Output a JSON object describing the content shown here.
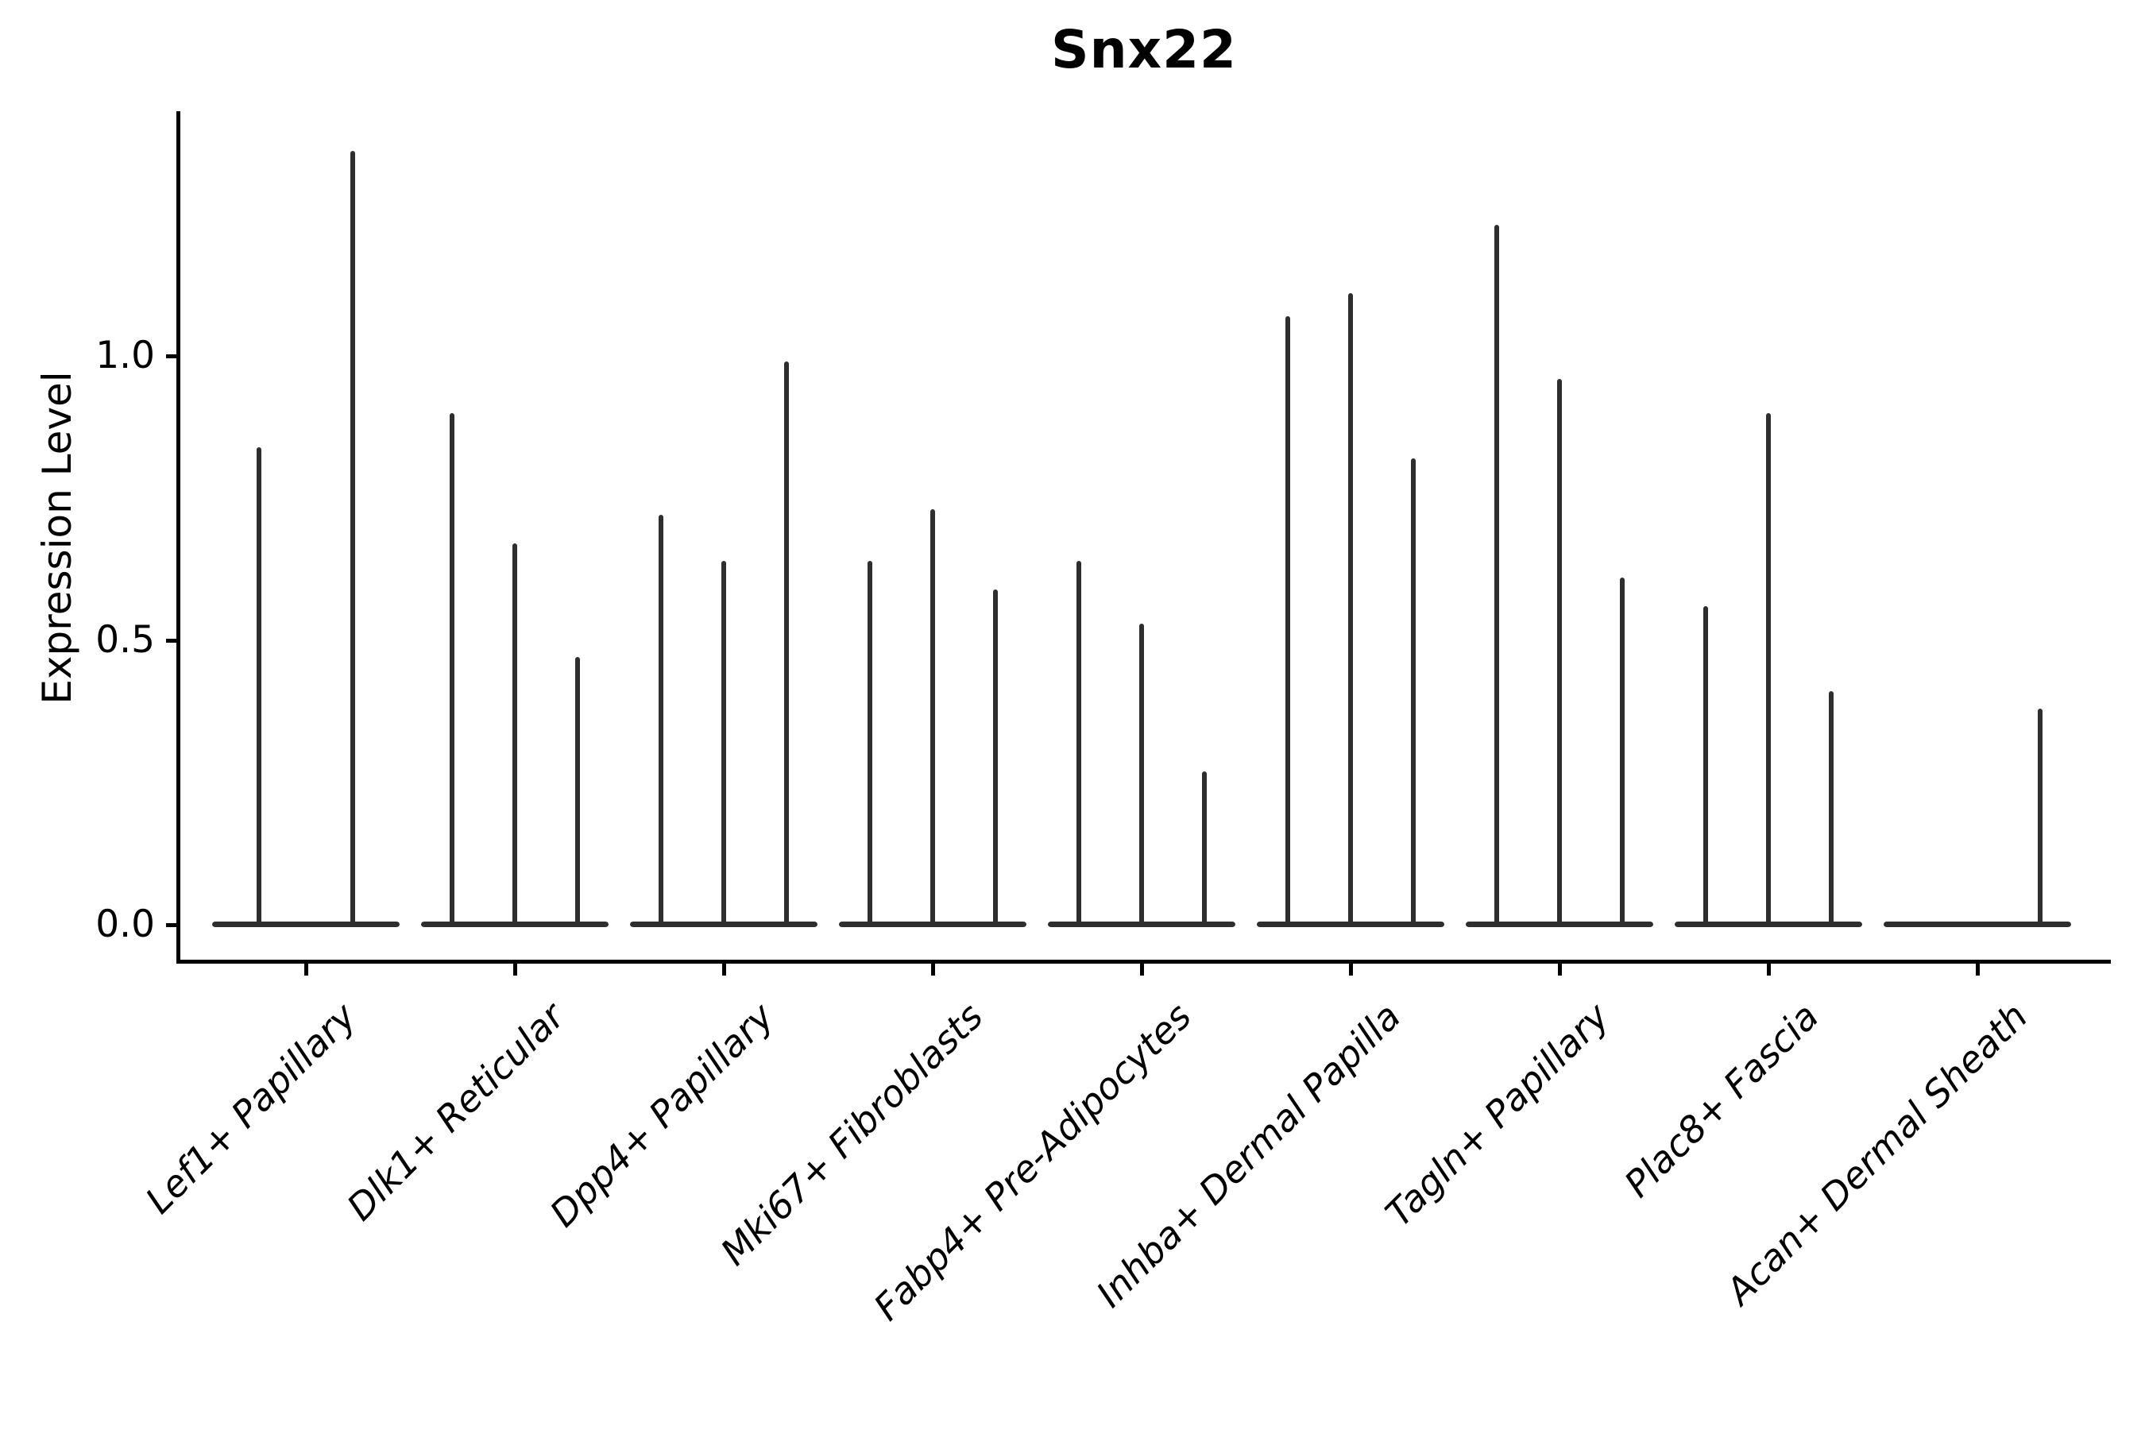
{
  "chart_data": {
    "type": "violin",
    "title": "Snx22",
    "xlabel": "",
    "ylabel": "Expression Level",
    "ylim": [
      0,
      1.43
    ],
    "yticks": [
      0.0,
      0.5,
      1.0
    ],
    "ytick_labels": [
      "0.0",
      "0.5",
      "1.0"
    ],
    "grid": false,
    "legend": "none",
    "violin_color": "#2e2e2e",
    "axis_color": "#000000",
    "background_color": "#ffffff",
    "note": "Each category holds multiple very thin violins flattened at 0 with narrow spikes to the listed peak expression value; zero entries are flat violins with no spike.",
    "categories": [
      "Lef1+ Papillary",
      "Dlk1+ Reticular",
      "Dpp4+ Papillary",
      "Mki67+ Fibroblasts",
      "Fabp4+ Pre-Adipocytes",
      "Inhba+ Dermal Papilla",
      "Tagln+ Papillary",
      "Plac8+ Fascia",
      "Acan+ Dermal Sheath"
    ],
    "series": [
      {
        "category": "Lef1+ Papillary",
        "violin_peaks": [
          0.84,
          1.36
        ]
      },
      {
        "category": "Dlk1+ Reticular",
        "violin_peaks": [
          0.9,
          0.67,
          0.47
        ]
      },
      {
        "category": "Dpp4+ Papillary",
        "violin_peaks": [
          0.72,
          0.64,
          0.99
        ]
      },
      {
        "category": "Mki67+ Fibroblasts",
        "violin_peaks": [
          0.64,
          0.73,
          0.59
        ]
      },
      {
        "category": "Fabp4+ Pre-Adipocytes",
        "violin_peaks": [
          0.64,
          0.53,
          0.27
        ]
      },
      {
        "category": "Inhba+ Dermal Papilla",
        "violin_peaks": [
          1.07,
          1.11,
          0.82
        ]
      },
      {
        "category": "Tagln+ Papillary",
        "violin_peaks": [
          1.23,
          0.96,
          0.61
        ]
      },
      {
        "category": "Plac8+ Fascia",
        "violin_peaks": [
          0.56,
          0.9,
          0.41
        ]
      },
      {
        "category": "Acan+ Dermal Sheath",
        "violin_peaks": [
          0,
          0,
          0.38
        ]
      }
    ]
  }
}
